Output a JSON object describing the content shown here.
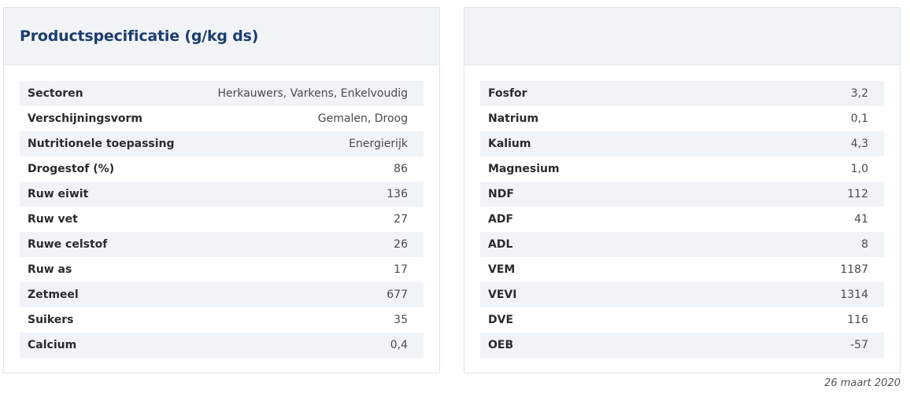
{
  "title": "Productspecificatie (g/kg ds)",
  "left_rows": [
    {
      "label": "Sectoren",
      "value": "Herkauwers, Varkens, Enkelvoudig"
    },
    {
      "label": "Verschijningsvorm",
      "value": "Gemalen, Droog"
    },
    {
      "label": "Nutritionele toepassing",
      "value": "Energierijk"
    },
    {
      "label": "Drogestof (%)",
      "value": "86"
    },
    {
      "label": "Ruw eiwit",
      "value": "136"
    },
    {
      "label": "Ruw vet",
      "value": "27"
    },
    {
      "label": "Ruwe celstof",
      "value": "26"
    },
    {
      "label": "Ruw as",
      "value": "17"
    },
    {
      "label": "Zetmeel",
      "value": "677"
    },
    {
      "label": "Suikers",
      "value": "35"
    },
    {
      "label": "Calcium",
      "value": "0,4"
    }
  ],
  "right_rows": [
    {
      "label": "Fosfor",
      "value": "3,2"
    },
    {
      "label": "Natrium",
      "value": "0,1"
    },
    {
      "label": "Kalium",
      "value": "4,3"
    },
    {
      "label": "Magnesium",
      "value": "1,0"
    },
    {
      "label": "NDF",
      "value": "112"
    },
    {
      "label": "ADF",
      "value": "41"
    },
    {
      "label": "ADL",
      "value": "8"
    },
    {
      "label": "VEM",
      "value": "1187"
    },
    {
      "label": "VEVI",
      "value": "1314"
    },
    {
      "label": "DVE",
      "value": "116"
    },
    {
      "label": "OEB",
      "value": "-57"
    }
  ],
  "date": "26 maart 2020"
}
